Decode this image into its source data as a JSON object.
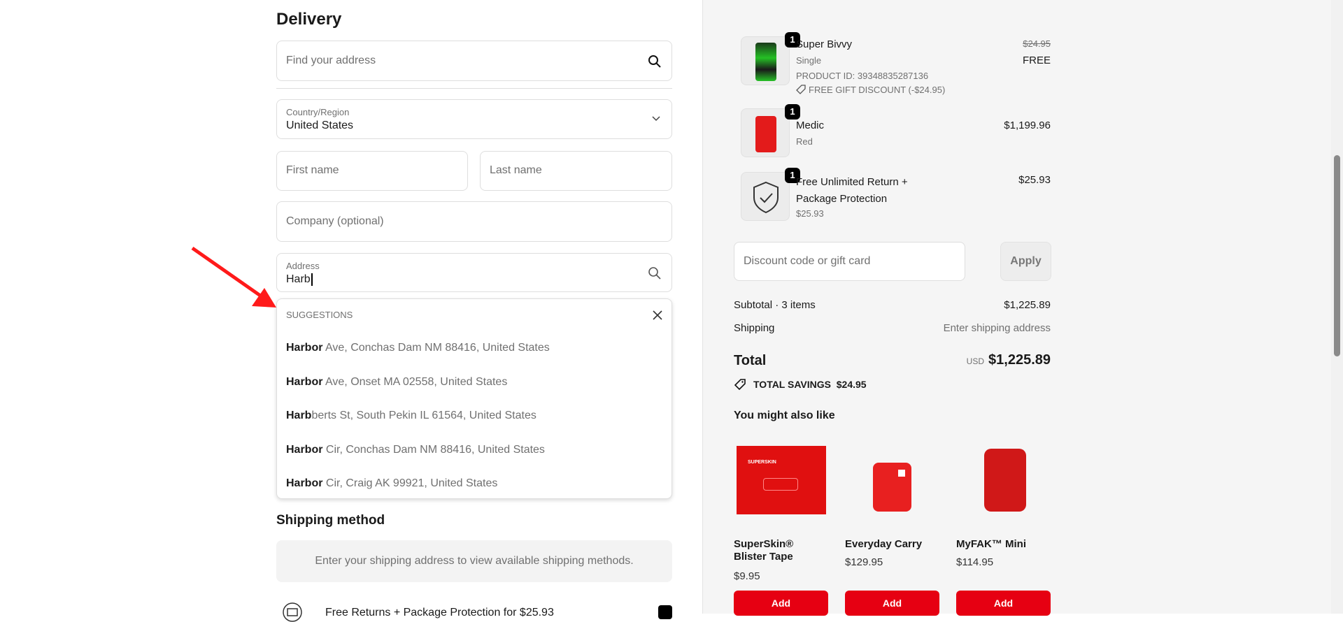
{
  "delivery": {
    "title": "Delivery",
    "find_address_placeholder": "Find your address",
    "country_label": "Country/Region",
    "country_value": "United States",
    "first_name_placeholder": "First name",
    "last_name_placeholder": "Last name",
    "company_placeholder": "Company (optional)",
    "address_label": "Address",
    "address_value": "Harb",
    "suggestions": {
      "header": "SUGGESTIONS",
      "items": [
        {
          "bold": "Harbor",
          "rest": " Ave, Conchas Dam NM 88416, United States"
        },
        {
          "bold": "Harbor",
          "rest": " Ave, Onset MA 02558, United States"
        },
        {
          "bold": "Harb",
          "rest": "berts St, South Pekin IL 61564, United States"
        },
        {
          "bold": "Harbor",
          "rest": " Cir, Conchas Dam NM 88416, United States"
        },
        {
          "bold": "Harbor",
          "rest": " Cir, Craig AK 99921, United States"
        }
      ]
    }
  },
  "shipping": {
    "title": "Shipping method",
    "info": "Enter your shipping address to view available shipping methods.",
    "protection_label": "Free Returns + Package Protection for $25.93",
    "protection_checked": true
  },
  "cart": {
    "items": [
      {
        "qty": "1",
        "name": "Super Bivvy",
        "variant": "Single",
        "product_id": "PRODUCT ID: 39348835287136",
        "discount": "FREE GIFT DISCOUNT (-$24.95)",
        "original_price": "$24.95",
        "price": "FREE"
      },
      {
        "qty": "1",
        "name": "Medic",
        "variant": "Red",
        "price": "$1,199.96"
      },
      {
        "qty": "1",
        "name": "Free Unlimited Return + Package Protection",
        "variant": "$25.93",
        "price": "$25.93"
      }
    ],
    "discount_placeholder": "Discount code or gift card",
    "apply_label": "Apply",
    "subtotal_label": "Subtotal · 3 items",
    "subtotal_value": "$1,225.89",
    "shipping_label": "Shipping",
    "shipping_value": "Enter shipping address",
    "total_label": "Total",
    "currency": "USD",
    "total_value": "$1,225.89",
    "savings_label": "TOTAL SAVINGS",
    "savings_value": "$24.95"
  },
  "recommendations": {
    "title": "You might also like",
    "products": [
      {
        "name": "SuperSkin® Blister Tape",
        "price": "$9.95",
        "add_label": "Add",
        "image_text": "SUPERSKIN"
      },
      {
        "name": "Everyday Carry",
        "price": "$129.95",
        "add_label": "Add"
      },
      {
        "name": "MyFAK™ Mini",
        "price": "$114.95",
        "add_label": "Add"
      }
    ]
  },
  "colors": {
    "accent": "#e60012",
    "panel": "#f5f5f5",
    "annotation_arrow": "#ff1a1a"
  }
}
